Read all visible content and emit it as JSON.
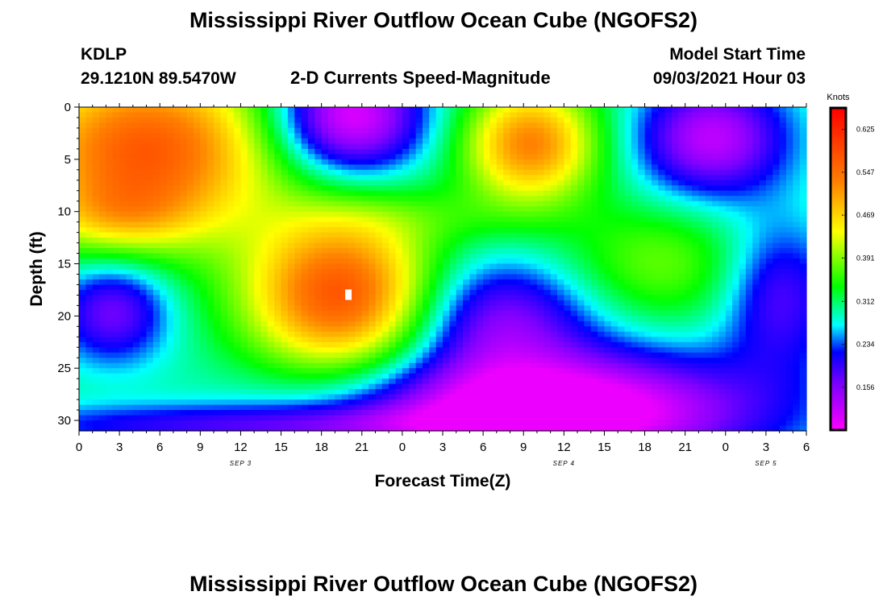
{
  "page": {
    "title_top": "Mississippi River Outflow Ocean Cube (NGOFS2)",
    "title_bottom": "Mississippi River Outflow Ocean Cube (NGOFS2)",
    "station_id": "KDLP",
    "coords": "29.1210N  89.5470W",
    "subtitle": "2-D Currents Speed-Magnitude",
    "model_start_label": "Model Start Time",
    "model_start_value": "09/03/2021 Hour 03"
  },
  "chart_data": {
    "type": "heatmap",
    "xlabel": "Forecast Time(Z)",
    "ylabel": "Depth (ft)",
    "x_range_hours": [
      0,
      54
    ],
    "y_range": [
      0,
      31
    ],
    "y_inverted": true,
    "x_ticks": [
      {
        "h": 0,
        "label": "0"
      },
      {
        "h": 3,
        "label": "3"
      },
      {
        "h": 6,
        "label": "6"
      },
      {
        "h": 9,
        "label": "9"
      },
      {
        "h": 12,
        "label": "12"
      },
      {
        "h": 15,
        "label": "15"
      },
      {
        "h": 18,
        "label": "18"
      },
      {
        "h": 21,
        "label": "21"
      },
      {
        "h": 24,
        "label": "0"
      },
      {
        "h": 27,
        "label": "3"
      },
      {
        "h": 30,
        "label": "6"
      },
      {
        "h": 33,
        "label": "9"
      },
      {
        "h": 36,
        "label": "12"
      },
      {
        "h": 39,
        "label": "15"
      },
      {
        "h": 42,
        "label": "18"
      },
      {
        "h": 45,
        "label": "21"
      },
      {
        "h": 48,
        "label": "0"
      },
      {
        "h": 51,
        "label": "3"
      },
      {
        "h": 54,
        "label": "6"
      }
    ],
    "date_labels": [
      {
        "h": 12,
        "label": "SEP 3"
      },
      {
        "h": 36,
        "label": "SEP 4"
      },
      {
        "h": 51,
        "label": "SEP 5"
      }
    ],
    "y_ticks": [
      0,
      5,
      10,
      15,
      20,
      25,
      30
    ],
    "colorbar": {
      "unit": "Knots",
      "min": 0.078,
      "max": 0.664,
      "ticks": [
        0.156,
        0.234,
        0.312,
        0.391,
        0.469,
        0.547,
        0.625
      ],
      "stops": [
        {
          "v": 0.078,
          "c": "#ff00ff"
        },
        {
          "v": 0.16,
          "c": "#8000ff"
        },
        {
          "v": 0.22,
          "c": "#0000ff"
        },
        {
          "v": 0.27,
          "c": "#00ffff"
        },
        {
          "v": 0.34,
          "c": "#00ff00"
        },
        {
          "v": 0.44,
          "c": "#ffff00"
        },
        {
          "v": 0.53,
          "c": "#ff8000"
        },
        {
          "v": 0.664,
          "c": "#ff0000"
        }
      ]
    },
    "speed_field": {
      "base": 0.3,
      "features": [
        {
          "h": 5,
          "d": 4,
          "sh": 7,
          "sd": 6,
          "a": 0.27
        },
        {
          "h": 3,
          "d": 10.5,
          "sh": 4,
          "sd": 2.5,
          "a": 0.08
        },
        {
          "h": 19.5,
          "d": 18,
          "sh": 5,
          "sd": 5.5,
          "a": 0.28
        },
        {
          "h": 20,
          "d": 1,
          "sh": 4,
          "sd": 4,
          "a": -0.22
        },
        {
          "h": 33.5,
          "d": 3.5,
          "sh": 3.5,
          "sd": 4,
          "a": 0.23
        },
        {
          "h": 47,
          "d": 3,
          "sh": 4,
          "sd": 4,
          "a": -0.18
        },
        {
          "h": 2.5,
          "d": 19.5,
          "sh": 3,
          "sd": 3.5,
          "a": -0.14
        },
        {
          "h": 43,
          "d": 15,
          "sh": 5,
          "sd": 4,
          "a": 0.08
        },
        {
          "h": 35,
          "d": 29,
          "sh": 11,
          "sd": 4,
          "a": -0.26
        },
        {
          "h": 31,
          "d": 20,
          "sh": 5,
          "sd": 4,
          "a": -0.14
        },
        {
          "h": 52,
          "d": 18,
          "sh": 3,
          "sd": 5,
          "a": -0.12
        },
        {
          "h": 11,
          "d": 30.5,
          "sh": 14,
          "sd": 1.5,
          "a": -0.1
        },
        {
          "h": 26,
          "d": 10.5,
          "sh": 6,
          "sd": 2,
          "a": 0.03
        }
      ],
      "min": 0.09,
      "max": 0.64
    },
    "marker": {
      "h": 20,
      "d": 18
    }
  }
}
